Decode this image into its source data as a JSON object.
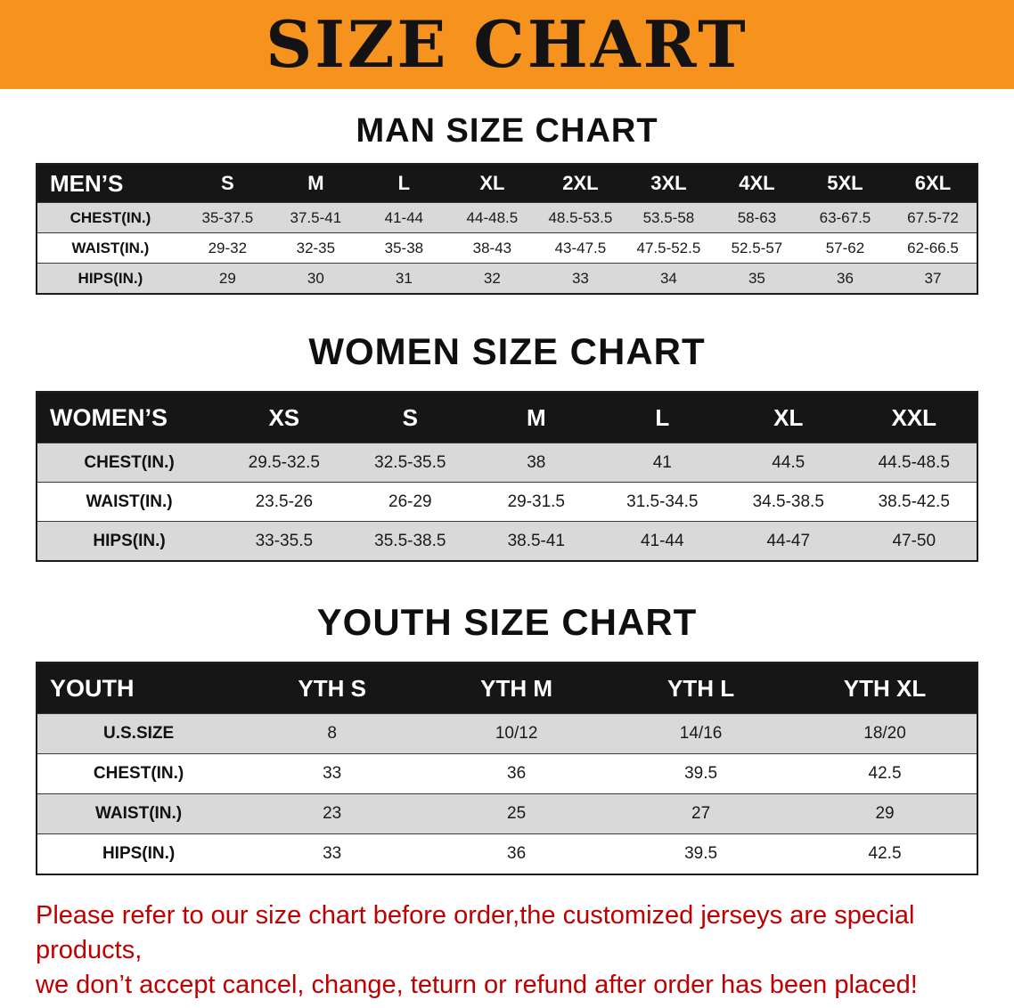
{
  "banner": {
    "title": "SIZE CHART",
    "bg_color": "#F6921E"
  },
  "sections": [
    {
      "id": "men",
      "title": "MAN SIZE CHART",
      "table": {
        "header": [
          "MEN’S",
          "S",
          "M",
          "L",
          "XL",
          "2XL",
          "3XL",
          "4XL",
          "5XL",
          "6XL"
        ],
        "rows": [
          [
            "CHEST(IN.)",
            "35-37.5",
            "37.5-41",
            "41-44",
            "44-48.5",
            "48.5-53.5",
            "53.5-58",
            "58-63",
            "63-67.5",
            "67.5-72"
          ],
          [
            "WAIST(IN.)",
            "29-32",
            "32-35",
            "35-38",
            "38-43",
            "43-47.5",
            "47.5-52.5",
            "52.5-57",
            "57-62",
            "62-66.5"
          ],
          [
            "HIPS(IN.)",
            "29",
            "30",
            "31",
            "32",
            "33",
            "34",
            "35",
            "36",
            "37"
          ]
        ]
      }
    },
    {
      "id": "women",
      "title": "WOMEN SIZE CHART",
      "table": {
        "header": [
          "WOMEN’S",
          "XS",
          "S",
          "M",
          "L",
          "XL",
          "XXL"
        ],
        "rows": [
          [
            "CHEST(IN.)",
            "29.5-32.5",
            "32.5-35.5",
            "38",
            "41",
            "44.5",
            "44.5-48.5"
          ],
          [
            "WAIST(IN.)",
            "23.5-26",
            "26-29",
            "29-31.5",
            "31.5-34.5",
            "34.5-38.5",
            "38.5-42.5"
          ],
          [
            "HIPS(IN.)",
            "33-35.5",
            "35.5-38.5",
            "38.5-41",
            "41-44",
            "44-47",
            "47-50"
          ]
        ]
      }
    },
    {
      "id": "youth",
      "title": "YOUTH SIZE CHART",
      "table": {
        "header": [
          "YOUTH",
          "YTH S",
          "YTH M",
          "YTH L",
          "YTH XL"
        ],
        "rows": [
          [
            "U.S.SIZE",
            "8",
            "10/12",
            "14/16",
            "18/20"
          ],
          [
            "CHEST(IN.)",
            "33",
            "36",
            "39.5",
            "42.5"
          ],
          [
            "WAIST(IN.)",
            "23",
            "25",
            "27",
            "29"
          ],
          [
            "HIPS(IN.)",
            "33",
            "36",
            "39.5",
            "42.5"
          ]
        ]
      }
    }
  ],
  "footer": {
    "line1": "Please refer to our size chart before order,the customized jerseys are special products,",
    "line2": "we don’t accept cancel, change, teturn or refund after order has been placed!",
    "text_color": "#C00000"
  },
  "colors": {
    "banner_bg": "#F6921E",
    "table_header_bg": "#161616",
    "row_shade": "#D9D9D9"
  }
}
